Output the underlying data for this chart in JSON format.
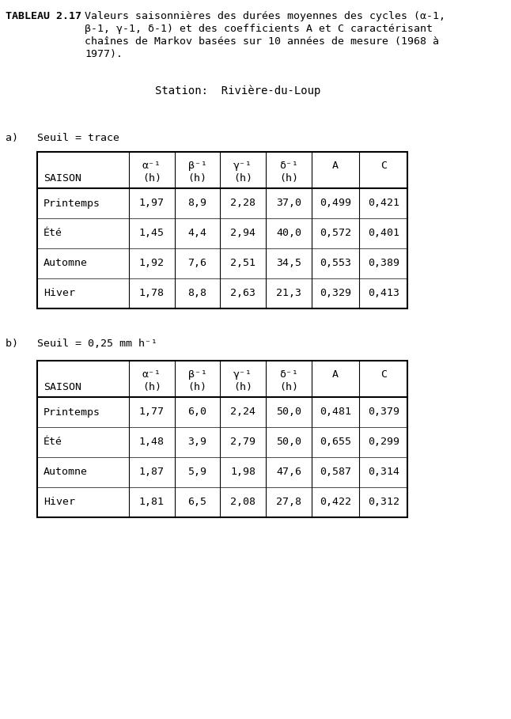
{
  "title_tableau": "TABLEAU 2.17",
  "title_body_line1": "Valeurs saisonnières des durées moyennes des cycles (α-1,",
  "title_body_line2": "β-1, γ-1, δ-1) et des coefficients A et C caractérisant",
  "title_body_line3": "chaînes de Markov basées sur 10 années de mesure (1968 à",
  "title_body_line4": "1977).",
  "station": "Station:  Rivière-du-Loup",
  "section_a_label": "a)   Seuil = trace",
  "section_b_label": "b)   Seuil = 0,25 mm h⁻¹",
  "col_header_row1": [
    "",
    "α⁻¹",
    "β⁻¹",
    "γ⁻¹",
    "δ⁻¹",
    "A",
    "C"
  ],
  "col_header_row2": [
    "SAISON",
    "(h)",
    "(h)",
    "(h)",
    "(h)",
    "",
    ""
  ],
  "table_a": [
    [
      "Printemps",
      "1,97",
      "8,9",
      "2,28",
      "37,0",
      "0,499",
      "0,421"
    ],
    [
      "Été",
      "1,45",
      "4,4",
      "2,94",
      "40,0",
      "0,572",
      "0,401"
    ],
    [
      "Automne",
      "1,92",
      "7,6",
      "2,51",
      "34,5",
      "0,553",
      "0,389"
    ],
    [
      "Hiver",
      "1,78",
      "8,8",
      "2,63",
      "21,3",
      "0,329",
      "0,413"
    ]
  ],
  "table_b": [
    [
      "Printemps",
      "1,77",
      "6,0",
      "2,24",
      "50,0",
      "0,481",
      "0,379"
    ],
    [
      "Été",
      "1,48",
      "3,9",
      "2,79",
      "50,0",
      "0,655",
      "0,299"
    ],
    [
      "Automne",
      "1,87",
      "5,9",
      "1,98",
      "47,6",
      "0,587",
      "0,314"
    ],
    [
      "Hiver",
      "1,81",
      "6,5",
      "2,08",
      "27,8",
      "0,422",
      "0,312"
    ]
  ],
  "bg_color": "#ffffff",
  "text_color": "#000000",
  "font_size": 9.5,
  "title_font_size": 9.5
}
